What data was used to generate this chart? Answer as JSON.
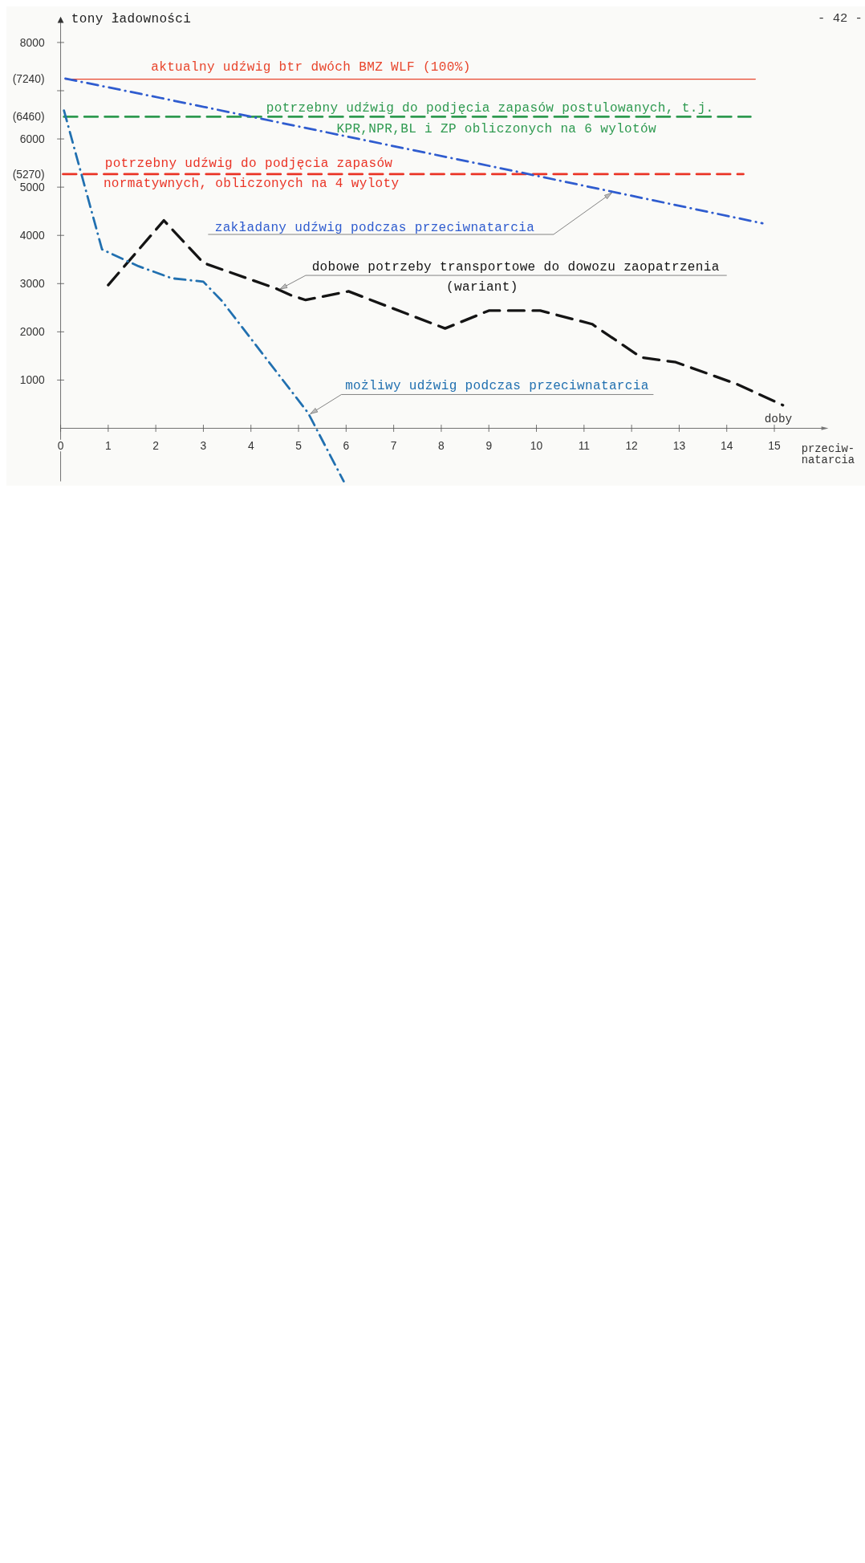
{
  "chart_data": {
    "type": "line",
    "xlabel": "doby",
    "ylabel": "tony ładowności",
    "annotations": [
      "przeciw-\nnatarcia",
      "- 42 -"
    ],
    "xlim": [
      0,
      16.1
    ],
    "xticks": [
      0,
      1,
      2,
      3,
      4,
      5,
      6,
      7,
      8,
      9,
      10,
      11,
      12,
      13,
      14,
      15
    ],
    "ylim": [
      -1100,
      8500
    ],
    "yticks": [
      8000,
      {
        "value": 7240,
        "label": "(7240)"
      },
      {
        "value": 7000,
        "label": null
      },
      {
        "value": 6460,
        "label": "(6460)"
      },
      6000,
      {
        "value": 5270,
        "label": "(5270)"
      },
      5000,
      4000,
      3000,
      2000,
      1000
    ],
    "marker": "none",
    "grid": false,
    "series": [
      {
        "name": "aktualny udźwig btr dwóch BMZ WLF (100%)",
        "color": "#e8452c",
        "line_style": "solid",
        "x": [
          0.1,
          14.6
        ],
        "values": [
          7240,
          7240
        ]
      },
      {
        "name": "potrzebny udźwig do podjęcia zapasów postulowanych, t.j.\nKPR,NPR,BL i ZP obliczonych na 6 wylotów",
        "color": "#2e9a50",
        "line_style": "dashed",
        "x": [
          0.07,
          14.5
        ],
        "values": [
          6460,
          6460
        ]
      },
      {
        "name": "potrzebny udźwig do podjęcia zapasów\nnormatywnych, obliczonych na 4 wyloty",
        "color": "#ea3426",
        "line_style": "dashed",
        "x": [
          0.05,
          14.35
        ],
        "values": [
          5270,
          5270
        ]
      },
      {
        "name": "zakładany udźwig podczas przeciwnatarcia",
        "color": "#2f5ccf",
        "line_style": "dashdot",
        "x": [
          0.1,
          2.1,
          9.6,
          14.75
        ],
        "values": [
          7250,
          6850,
          5320,
          4250
        ]
      },
      {
        "name": "dobowe potrzeby transportowe do dowozu zaopatrzenia\n(wariant)",
        "color": "#141414",
        "line_style": "dashed",
        "x": [
          1.0,
          2.17,
          3.0,
          4.55,
          4.84,
          5.15,
          6.05,
          8.08,
          9.0,
          10.08,
          11.17,
          12.2,
          12.93,
          14.2,
          15.18
        ],
        "values": [
          2970,
          4310,
          3430,
          2890,
          2760,
          2660,
          2840,
          2070,
          2440,
          2440,
          2160,
          1470,
          1370,
          920,
          480
        ]
      },
      {
        "name": "możliwy udźwig podczas przeciwnatarcia",
        "color": "#2170b0",
        "line_style": "dashdot",
        "x": [
          0.07,
          0.87,
          1.64,
          2.34,
          3.0,
          3.39,
          5.2,
          5.95
        ],
        "values": [
          6590,
          3710,
          3360,
          3110,
          3040,
          2640,
          320,
          -1100
        ]
      }
    ]
  }
}
